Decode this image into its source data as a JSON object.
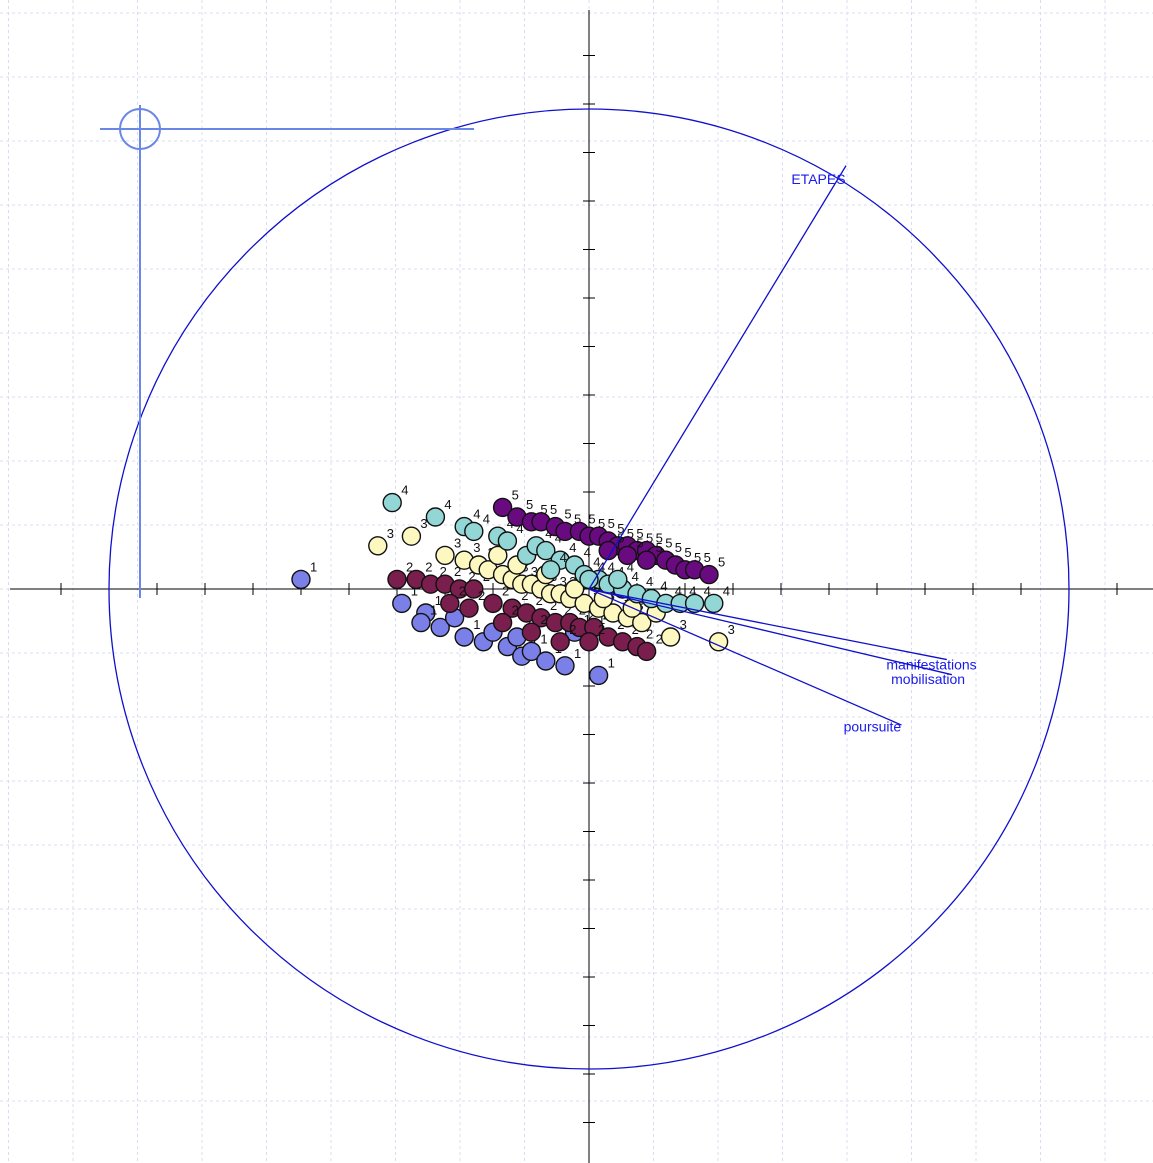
{
  "chart_data": {
    "type": "scatter",
    "title": "",
    "xlabel": "",
    "ylabel": "",
    "xlim": [
      -1.1,
      1.2
    ],
    "ylim": [
      -1.2,
      1.2
    ],
    "grid": true,
    "correlation_circle_radius": 1.0,
    "colors": {
      "1": "#7b7fe8",
      "2": "#7a1e4e",
      "3": "#fdf8c0",
      "4": "#93d6d6",
      "5": "#6a0a80"
    },
    "vectors": [
      {
        "name": "ETAPES",
        "x": 0.51,
        "y": 0.84
      },
      {
        "name": "manifestations",
        "x": 0.71,
        "y": -0.14
      },
      {
        "name": "mobilisation",
        "x": 0.72,
        "y": -0.17
      },
      {
        "name": "poursuite",
        "x": 0.62,
        "y": -0.27
      }
    ],
    "series": [
      {
        "name": "1",
        "points": [
          [
            -0.6,
            0.02
          ],
          [
            -0.39,
            -0.03
          ],
          [
            -0.34,
            -0.05
          ],
          [
            -0.31,
            -0.08
          ],
          [
            -0.26,
            -0.1
          ],
          [
            -0.22,
            -0.11
          ],
          [
            -0.2,
            -0.09
          ],
          [
            -0.17,
            -0.12
          ],
          [
            -0.15,
            -0.1
          ],
          [
            -0.14,
            -0.14
          ],
          [
            -0.12,
            -0.13
          ],
          [
            -0.09,
            -0.15
          ],
          [
            -0.05,
            -0.16
          ],
          [
            -0.03,
            -0.09
          ],
          [
            0.0,
            -0.09
          ],
          [
            0.02,
            -0.18
          ],
          [
            -0.35,
            -0.07
          ],
          [
            -0.28,
            -0.06
          ]
        ]
      },
      {
        "name": "2",
        "points": [
          [
            -0.4,
            0.02
          ],
          [
            -0.36,
            0.02
          ],
          [
            -0.33,
            0.01
          ],
          [
            -0.3,
            0.01
          ],
          [
            -0.27,
            0.0
          ],
          [
            -0.24,
            0.0
          ],
          [
            -0.29,
            -0.03
          ],
          [
            -0.25,
            -0.04
          ],
          [
            -0.2,
            -0.03
          ],
          [
            -0.16,
            -0.04
          ],
          [
            -0.13,
            -0.05
          ],
          [
            -0.1,
            -0.06
          ],
          [
            -0.07,
            -0.07
          ],
          [
            -0.04,
            -0.07
          ],
          [
            -0.02,
            -0.08
          ],
          [
            0.01,
            -0.08
          ],
          [
            0.04,
            -0.1
          ],
          [
            0.07,
            -0.11
          ],
          [
            0.1,
            -0.12
          ],
          [
            0.12,
            -0.13
          ],
          [
            -0.18,
            -0.07
          ],
          [
            -0.12,
            -0.09
          ],
          [
            -0.06,
            -0.11
          ],
          [
            0.0,
            -0.11
          ]
        ]
      },
      {
        "name": "3",
        "points": [
          [
            -0.44,
            0.09
          ],
          [
            -0.37,
            0.11
          ],
          [
            -0.3,
            0.07
          ],
          [
            -0.26,
            0.06
          ],
          [
            -0.23,
            0.05
          ],
          [
            -0.21,
            0.04
          ],
          [
            -0.18,
            0.03
          ],
          [
            -0.16,
            0.02
          ],
          [
            -0.14,
            0.01
          ],
          [
            -0.12,
            0.01
          ],
          [
            -0.1,
            0.0
          ],
          [
            -0.08,
            -0.01
          ],
          [
            -0.06,
            -0.01
          ],
          [
            -0.04,
            -0.02
          ],
          [
            -0.01,
            -0.03
          ],
          [
            0.02,
            -0.04
          ],
          [
            0.05,
            -0.05
          ],
          [
            0.08,
            -0.06
          ],
          [
            0.11,
            -0.07
          ],
          [
            0.17,
            -0.1
          ],
          [
            0.27,
            -0.11
          ],
          [
            -0.19,
            0.07
          ],
          [
            -0.15,
            0.05
          ],
          [
            -0.09,
            0.03
          ],
          [
            -0.03,
            0.0
          ],
          [
            0.03,
            -0.02
          ],
          [
            0.09,
            -0.04
          ],
          [
            0.14,
            -0.05
          ]
        ]
      },
      {
        "name": "4",
        "points": [
          [
            -0.41,
            0.18
          ],
          [
            -0.32,
            0.15
          ],
          [
            -0.26,
            0.13
          ],
          [
            -0.24,
            0.12
          ],
          [
            -0.19,
            0.11
          ],
          [
            -0.17,
            0.1
          ],
          [
            -0.13,
            0.07
          ],
          [
            -0.11,
            0.09
          ],
          [
            -0.09,
            0.08
          ],
          [
            -0.06,
            0.06
          ],
          [
            -0.03,
            0.05
          ],
          [
            -0.01,
            0.03
          ],
          [
            0.02,
            0.02
          ],
          [
            0.04,
            0.01
          ],
          [
            0.07,
            0.0
          ],
          [
            0.1,
            -0.01
          ],
          [
            0.13,
            -0.02
          ],
          [
            0.16,
            -0.03
          ],
          [
            0.19,
            -0.03
          ],
          [
            0.22,
            -0.03
          ],
          [
            0.26,
            -0.03
          ],
          [
            -0.08,
            0.04
          ],
          [
            0.0,
            0.02
          ],
          [
            0.06,
            0.02
          ]
        ]
      },
      {
        "name": "5",
        "points": [
          [
            -0.18,
            0.17
          ],
          [
            -0.15,
            0.15
          ],
          [
            -0.12,
            0.14
          ],
          [
            -0.1,
            0.14
          ],
          [
            -0.07,
            0.13
          ],
          [
            -0.05,
            0.12
          ],
          [
            -0.02,
            0.12
          ],
          [
            0.0,
            0.11
          ],
          [
            0.02,
            0.11
          ],
          [
            0.04,
            0.1
          ],
          [
            0.06,
            0.09
          ],
          [
            0.08,
            0.09
          ],
          [
            0.1,
            0.08
          ],
          [
            0.12,
            0.08
          ],
          [
            0.14,
            0.07
          ],
          [
            0.16,
            0.06
          ],
          [
            0.18,
            0.05
          ],
          [
            0.2,
            0.04
          ],
          [
            0.22,
            0.04
          ],
          [
            0.25,
            0.03
          ],
          [
            0.08,
            0.07
          ],
          [
            0.12,
            0.06
          ],
          [
            0.04,
            0.08
          ]
        ]
      }
    ]
  }
}
